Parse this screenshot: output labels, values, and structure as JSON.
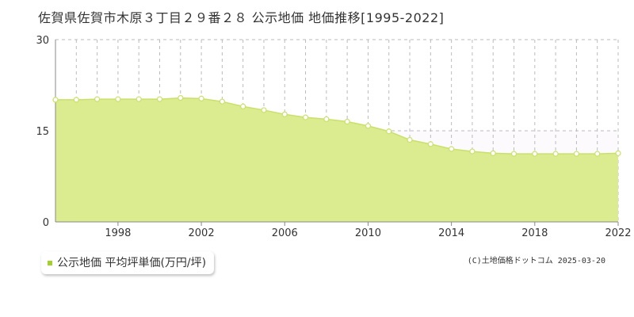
{
  "title": "佐賀県佐賀市木原３丁目２９番２８ 公示地価 地価推移[1995-2022]",
  "legend": {
    "label": "公示地価 平均坪単価(万円/坪)",
    "marker_color": "#a3d12b"
  },
  "copyright": "(C)土地価格ドットコム 2025-03-20",
  "colors": {
    "fill": "#dbeb8f",
    "line": "#c9e16a",
    "point_fill": "#ffffff",
    "grid": "#bbbbbb",
    "axis": "#888888",
    "upper_band": "#fcfafd"
  },
  "chart_data": {
    "type": "area",
    "x": [
      1995,
      1996,
      1997,
      1998,
      1999,
      2000,
      2001,
      2002,
      2003,
      2004,
      2005,
      2006,
      2007,
      2008,
      2009,
      2010,
      2011,
      2012,
      2013,
      2014,
      2015,
      2016,
      2017,
      2018,
      2019,
      2020,
      2021,
      2022
    ],
    "values": [
      20.1,
      20.1,
      20.2,
      20.2,
      20.2,
      20.2,
      20.4,
      20.3,
      19.8,
      19.0,
      18.4,
      17.7,
      17.2,
      16.9,
      16.5,
      15.8,
      14.9,
      13.5,
      12.8,
      12.0,
      11.6,
      11.3,
      11.2,
      11.2,
      11.2,
      11.2,
      11.2,
      11.3
    ],
    "xlim": [
      1995,
      2022
    ],
    "ylim": [
      0,
      30
    ],
    "y_ticks": [
      "0",
      "15",
      "30"
    ],
    "x_ticks": [
      "1998",
      "2002",
      "2006",
      "2010",
      "2014",
      "2018",
      "2022"
    ],
    "title": "",
    "xlabel": "",
    "ylabel": "",
    "grid": true
  }
}
